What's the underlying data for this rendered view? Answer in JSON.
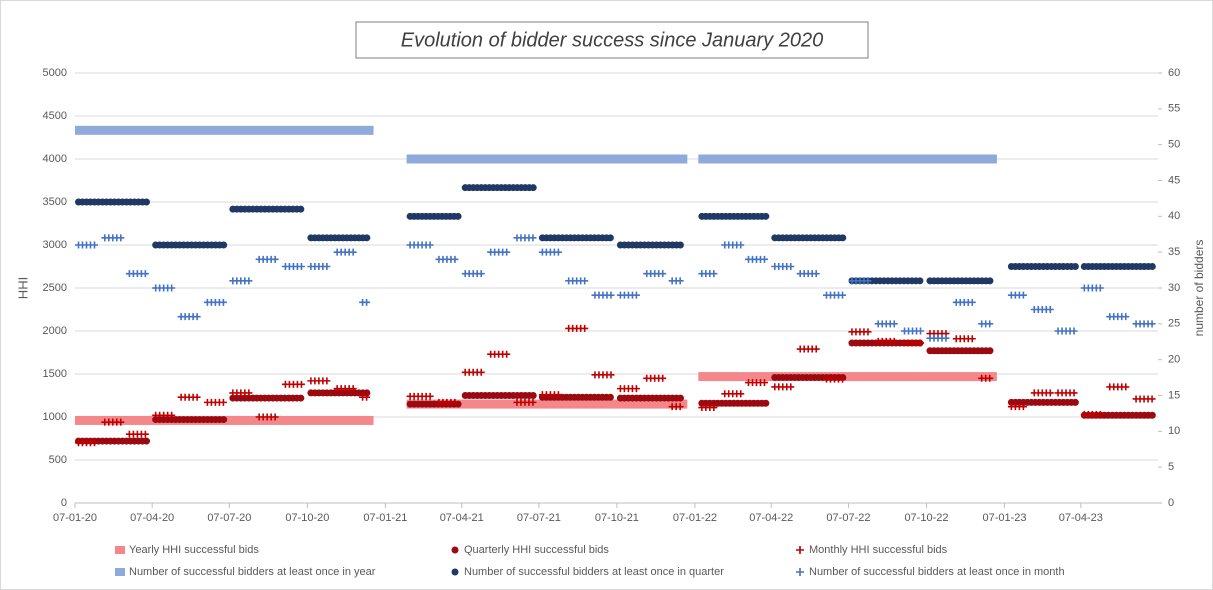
{
  "chart_data": {
    "type": "step-markers",
    "title": "Evolution of bidder success since January 2020",
    "y_label": "HHI",
    "y2_label": "number of bidders",
    "xlim": [
      "2020-01-07",
      "2023-07-07"
    ],
    "xticks": [
      {
        "value": "2020-01-07",
        "label": "07-01-20"
      },
      {
        "value": "2020-04-07",
        "label": "07-04-20"
      },
      {
        "value": "2020-07-07",
        "label": "07-07-20"
      },
      {
        "value": "2020-10-07",
        "label": "07-10-20"
      },
      {
        "value": "2021-01-07",
        "label": "07-01-21"
      },
      {
        "value": "2021-04-07",
        "label": "07-04-21"
      },
      {
        "value": "2021-07-07",
        "label": "07-07-21"
      },
      {
        "value": "2021-10-07",
        "label": "07-10-21"
      },
      {
        "value": "2022-01-07",
        "label": "07-01-22"
      },
      {
        "value": "2022-04-07",
        "label": "07-04-22"
      },
      {
        "value": "2022-07-07",
        "label": "07-07-22"
      },
      {
        "value": "2022-10-07",
        "label": "07-10-22"
      },
      {
        "value": "2023-01-07",
        "label": "07-01-23"
      },
      {
        "value": "2023-04-07",
        "label": "07-04-23"
      }
    ],
    "ylim": [
      0,
      5000
    ],
    "yticks": [
      0,
      500,
      1000,
      1500,
      2000,
      2500,
      3000,
      3500,
      4000,
      4500,
      5000
    ],
    "y2lim": [
      0,
      60
    ],
    "y2ticks": [
      0,
      5,
      10,
      15,
      20,
      25,
      30,
      35,
      40,
      45,
      50,
      55,
      60
    ],
    "grid": true,
    "legend": "bottom",
    "series": [
      {
        "name": "Yearly HHI successful bids",
        "color": "#f4878a",
        "marker": "bar",
        "x": [
          "2020-01-07",
          "2021-02-01",
          "2022-01-11"
        ],
        "x_end": [
          "2020-12-24",
          "2021-12-29",
          "2022-12-29"
        ],
        "values": [
          960,
          1150,
          1470
        ]
      },
      {
        "name": "Quarterly HHI successful bids",
        "color": "#9b0a10",
        "marker": "dot",
        "x": [
          "2020-01-07",
          "2020-04-07",
          "2020-07-07",
          "2020-10-07",
          "2021-02-01",
          "2021-04-07",
          "2021-07-07",
          "2021-10-07",
          "2022-01-11",
          "2022-04-07",
          "2022-07-07",
          "2022-10-07",
          "2023-01-11",
          "2023-04-07"
        ],
        "x_end": [
          "2020-04-07",
          "2020-07-07",
          "2020-10-07",
          "2020-12-24",
          "2021-04-07",
          "2021-07-07",
          "2021-10-07",
          "2021-12-29",
          "2022-04-07",
          "2022-07-07",
          "2022-10-07",
          "2022-12-29",
          "2023-04-07",
          "2023-07-07"
        ],
        "values": [
          720,
          970,
          1220,
          1280,
          1150,
          1250,
          1230,
          1220,
          1160,
          1460,
          1860,
          1770,
          1170,
          1020
        ]
      },
      {
        "name": "Monthly HHI successful bids",
        "color": "#c00000",
        "marker": "plus",
        "x": [
          "2020-01-07",
          "2020-02-07",
          "2020-03-07",
          "2020-04-07",
          "2020-05-07",
          "2020-06-07",
          "2020-07-07",
          "2020-08-07",
          "2020-09-07",
          "2020-10-07",
          "2020-11-07",
          "2020-12-07",
          "2021-02-01",
          "2021-03-07",
          "2021-04-07",
          "2021-05-07",
          "2021-06-07",
          "2021-07-07",
          "2021-08-07",
          "2021-09-07",
          "2021-10-07",
          "2021-11-07",
          "2021-12-07",
          "2022-01-11",
          "2022-02-07",
          "2022-03-07",
          "2022-04-07",
          "2022-05-07",
          "2022-06-07",
          "2022-07-07",
          "2022-08-07",
          "2022-09-07",
          "2022-10-07",
          "2022-11-07",
          "2022-12-07",
          "2023-01-11",
          "2023-02-07",
          "2023-03-07",
          "2023-04-07",
          "2023-05-07",
          "2023-06-07"
        ],
        "x_end": [
          "2020-02-07",
          "2020-03-07",
          "2020-04-07",
          "2020-05-07",
          "2020-06-07",
          "2020-07-07",
          "2020-08-07",
          "2020-09-07",
          "2020-10-07",
          "2020-11-07",
          "2020-12-07",
          "2020-12-24",
          "2021-03-07",
          "2021-04-07",
          "2021-05-07",
          "2021-06-07",
          "2021-07-07",
          "2021-08-07",
          "2021-09-07",
          "2021-10-07",
          "2021-11-07",
          "2021-12-07",
          "2021-12-29",
          "2022-02-07",
          "2022-03-07",
          "2022-04-07",
          "2022-05-07",
          "2022-06-07",
          "2022-07-07",
          "2022-08-07",
          "2022-09-07",
          "2022-10-07",
          "2022-11-07",
          "2022-12-07",
          "2022-12-29",
          "2023-02-07",
          "2023-03-07",
          "2023-04-07",
          "2023-05-07",
          "2023-06-07",
          "2023-07-07"
        ],
        "values": [
          700,
          940,
          800,
          1020,
          1230,
          1170,
          1280,
          1000,
          1380,
          1420,
          1330,
          1230,
          1240,
          1170,
          1520,
          1730,
          1170,
          1260,
          2030,
          1490,
          1330,
          1450,
          1120,
          1110,
          1270,
          1400,
          1350,
          1790,
          1440,
          1990,
          1880,
          1860,
          1970,
          1910,
          1450,
          1120,
          1280,
          1280,
          1030,
          1350,
          1210
        ]
      },
      {
        "name": "Number of successful bidders at least once in year",
        "color": "#8eaadb",
        "marker": "bar",
        "axis": "y2",
        "x": [
          "2020-01-07",
          "2021-02-01",
          "2022-01-11"
        ],
        "x_end": [
          "2020-12-24",
          "2021-12-29",
          "2022-12-29"
        ],
        "values": [
          52,
          48,
          48
        ]
      },
      {
        "name": "Number of successful bidders at least once in quarter",
        "color": "#1f3864",
        "marker": "dot",
        "axis": "y2",
        "x": [
          "2020-01-07",
          "2020-04-07",
          "2020-07-07",
          "2020-10-07",
          "2021-02-01",
          "2021-04-07",
          "2021-07-07",
          "2021-10-07",
          "2022-01-11",
          "2022-04-07",
          "2022-07-07",
          "2022-10-07",
          "2023-01-11",
          "2023-04-07"
        ],
        "x_end": [
          "2020-04-07",
          "2020-07-07",
          "2020-10-07",
          "2020-12-24",
          "2021-04-07",
          "2021-07-07",
          "2021-10-07",
          "2021-12-29",
          "2022-04-07",
          "2022-07-07",
          "2022-10-07",
          "2022-12-29",
          "2023-04-07",
          "2023-07-07"
        ],
        "values": [
          42,
          36,
          41,
          37,
          40,
          44,
          37,
          36,
          40,
          37,
          31,
          31,
          33,
          33
        ]
      },
      {
        "name": "Number of successful bidders at least once in month",
        "color": "#4472c4",
        "marker": "plus",
        "axis": "y2",
        "x": [
          "2020-01-07",
          "2020-02-07",
          "2020-03-07",
          "2020-04-07",
          "2020-05-07",
          "2020-06-07",
          "2020-07-07",
          "2020-08-07",
          "2020-09-07",
          "2020-10-07",
          "2020-11-07",
          "2020-12-07",
          "2021-02-01",
          "2021-03-07",
          "2021-04-07",
          "2021-05-07",
          "2021-06-07",
          "2021-07-07",
          "2021-08-07",
          "2021-09-07",
          "2021-10-07",
          "2021-11-07",
          "2021-12-07",
          "2022-01-11",
          "2022-02-07",
          "2022-03-07",
          "2022-04-07",
          "2022-05-07",
          "2022-06-07",
          "2022-07-07",
          "2022-08-07",
          "2022-09-07",
          "2022-10-07",
          "2022-11-07",
          "2022-12-07",
          "2023-01-11",
          "2023-02-07",
          "2023-03-07",
          "2023-04-07",
          "2023-05-07",
          "2023-06-07"
        ],
        "x_end": [
          "2020-02-07",
          "2020-03-07",
          "2020-04-07",
          "2020-05-07",
          "2020-06-07",
          "2020-07-07",
          "2020-08-07",
          "2020-09-07",
          "2020-10-07",
          "2020-11-07",
          "2020-12-07",
          "2020-12-24",
          "2021-03-07",
          "2021-04-07",
          "2021-05-07",
          "2021-06-07",
          "2021-07-07",
          "2021-08-07",
          "2021-09-07",
          "2021-10-07",
          "2021-11-07",
          "2021-12-07",
          "2021-12-29",
          "2022-02-07",
          "2022-03-07",
          "2022-04-07",
          "2022-05-07",
          "2022-06-07",
          "2022-07-07",
          "2022-08-07",
          "2022-09-07",
          "2022-10-07",
          "2022-11-07",
          "2022-12-07",
          "2022-12-29",
          "2023-02-07",
          "2023-03-07",
          "2023-04-07",
          "2023-05-07",
          "2023-06-07",
          "2023-07-07"
        ],
        "values": [
          36,
          37,
          32,
          30,
          26,
          28,
          31,
          34,
          33,
          33,
          35,
          28,
          36,
          34,
          32,
          35,
          37,
          35,
          31,
          29,
          29,
          32,
          31,
          32,
          36,
          34,
          33,
          32,
          29,
          31,
          25,
          24,
          23,
          28,
          25,
          29,
          27,
          24,
          30,
          26,
          25
        ]
      }
    ]
  }
}
